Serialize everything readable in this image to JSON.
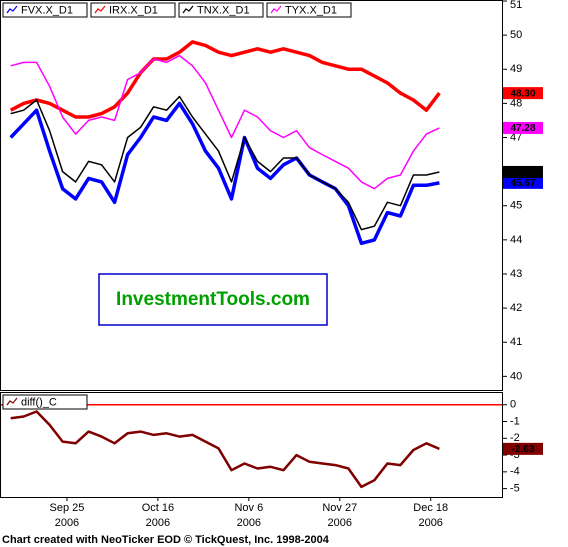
{
  "chart_data": [
    {
      "type": "line",
      "x": [
        "2006-09-12",
        "2006-09-15",
        "2006-09-18",
        "2006-09-21",
        "2006-09-24",
        "2006-09-27",
        "2006-09-30",
        "2006-10-03",
        "2006-10-06",
        "2006-10-09",
        "2006-10-12",
        "2006-10-15",
        "2006-10-18",
        "2006-10-21",
        "2006-10-24",
        "2006-10-27",
        "2006-10-30",
        "2006-11-02",
        "2006-11-05",
        "2006-11-08",
        "2006-11-11",
        "2006-11-14",
        "2006-11-17",
        "2006-11-20",
        "2006-11-23",
        "2006-11-26",
        "2006-11-29",
        "2006-12-02",
        "2006-12-05",
        "2006-12-08",
        "2006-12-11",
        "2006-12-14",
        "2006-12-17",
        "2006-12-20"
      ],
      "xlim": [
        "2006-09-10",
        "2006-12-31"
      ],
      "xticks": [
        {
          "value": "2006-09-25",
          "label": "Sep 25"
        },
        {
          "value": "2006-10-16",
          "label": "Oct 16"
        },
        {
          "value": "2006-11-06",
          "label": "Nov 6"
        },
        {
          "value": "2006-11-27",
          "label": "Nov 27"
        },
        {
          "value": "2006-12-18",
          "label": "Dec 18"
        }
      ],
      "xtick_years": [
        "2006",
        "2006",
        "2006",
        "2006",
        "2006"
      ],
      "ylim": [
        39.6,
        51
      ],
      "yticks": [
        40,
        41,
        42,
        43,
        44,
        45,
        46,
        47,
        48,
        49,
        50,
        51
      ],
      "watermark": "InvestmentTools.com",
      "series": [
        {
          "name": "FVX.X_D1",
          "color": "#0000ff",
          "last_value_label": "45.67",
          "values": [
            47.0,
            47.4,
            47.8,
            46.6,
            45.5,
            45.2,
            45.8,
            45.7,
            45.1,
            46.5,
            47.0,
            47.6,
            47.5,
            48.0,
            47.4,
            46.6,
            46.1,
            45.2,
            47.0,
            46.1,
            45.8,
            46.2,
            46.4,
            45.9,
            45.7,
            45.5,
            45.0,
            43.9,
            44.0,
            44.8,
            44.7,
            45.6,
            45.6,
            45.67
          ]
        },
        {
          "name": "IRX.X_D1",
          "color": "#ff0000",
          "last_value_label": "48.30",
          "values": [
            47.8,
            48.0,
            48.1,
            48.0,
            47.8,
            47.6,
            47.6,
            47.7,
            47.9,
            48.3,
            48.9,
            49.3,
            49.3,
            49.5,
            49.8,
            49.7,
            49.5,
            49.4,
            49.5,
            49.6,
            49.5,
            49.6,
            49.5,
            49.4,
            49.2,
            49.1,
            49.0,
            49.0,
            48.8,
            48.6,
            48.3,
            48.1,
            47.8,
            48.3
          ]
        },
        {
          "name": "TNX.X_D1",
          "color": "#000000",
          "last_value_label": "45.99",
          "values": [
            47.7,
            47.8,
            48.1,
            47.2,
            46.0,
            45.7,
            46.3,
            46.2,
            45.7,
            47.0,
            47.3,
            47.9,
            47.8,
            48.2,
            47.6,
            47.1,
            46.6,
            45.7,
            47.0,
            46.3,
            46.0,
            46.4,
            46.4,
            45.9,
            45.7,
            45.5,
            45.1,
            44.3,
            44.4,
            45.1,
            45.0,
            45.9,
            45.9,
            45.99
          ]
        },
        {
          "name": "TYX.X_D1",
          "color": "#ff00ff",
          "last_value_label": "47.28",
          "values": [
            49.1,
            49.2,
            49.2,
            48.5,
            47.6,
            47.1,
            47.5,
            47.6,
            47.5,
            48.7,
            48.9,
            49.3,
            49.2,
            49.4,
            49.1,
            48.6,
            47.8,
            47.0,
            47.8,
            47.6,
            47.2,
            47.0,
            47.2,
            46.7,
            46.5,
            46.3,
            46.1,
            45.7,
            45.5,
            45.8,
            45.9,
            46.6,
            47.1,
            47.28
          ]
        }
      ]
    },
    {
      "type": "line",
      "ylim": [
        -5.5,
        0.7
      ],
      "yticks": [
        0,
        -1,
        -2,
        -3,
        -4,
        -5
      ],
      "reference_line": {
        "value": 0,
        "color": "#ff0000"
      },
      "series": [
        {
          "name": "diff()_C",
          "color": "#800000",
          "last_value_label": "-2.63",
          "values": [
            -0.8,
            -0.7,
            -0.4,
            -1.2,
            -2.2,
            -2.3,
            -1.6,
            -1.9,
            -2.3,
            -1.7,
            -1.6,
            -1.8,
            -1.7,
            -1.9,
            -1.8,
            -2.2,
            -2.6,
            -3.9,
            -3.5,
            -3.8,
            -3.7,
            -3.9,
            -3.0,
            -3.4,
            -3.5,
            -3.6,
            -3.8,
            -4.9,
            -4.5,
            -3.5,
            -3.6,
            -2.7,
            -2.3,
            -2.63
          ]
        }
      ]
    }
  ],
  "footer": "Chart created with NeoTicker EOD © TickQuest, Inc. 1998-2004"
}
